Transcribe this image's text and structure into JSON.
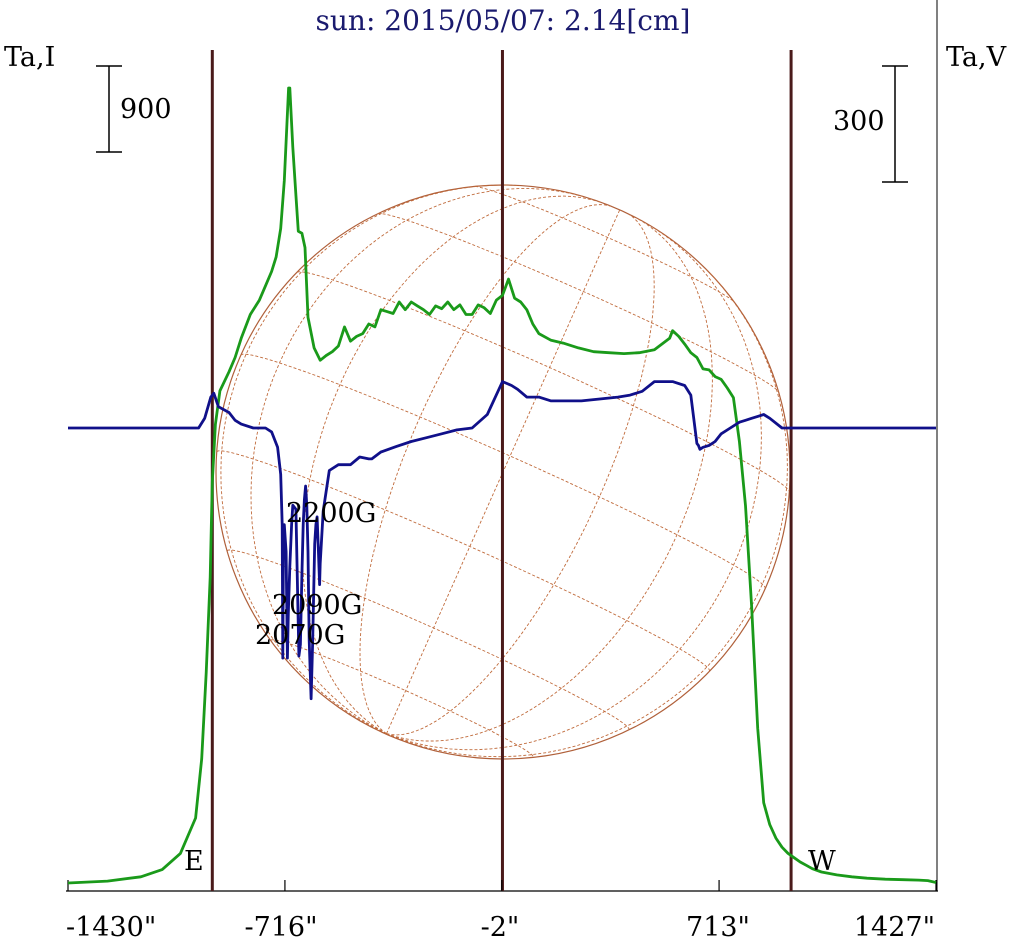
{
  "chart_data": {
    "type": "line",
    "title": "sun: 2015/05/07: 2.14[cm]",
    "left_axis_label": "Ta,I",
    "right_axis_label": "Ta,V",
    "x_ticks": [
      "-1430\"",
      "-716\"",
      "-2\"",
      "713\"",
      "1427\""
    ],
    "x_tick_values": [
      -1430,
      -716,
      -2,
      713,
      1427
    ],
    "xlim": [
      -1430,
      1427
    ],
    "scale_bar_I": "900",
    "scale_bar_V": "300",
    "limb_labels": {
      "east": "E",
      "west": "W"
    },
    "limb_positions": [
      -955,
      0,
      950
    ],
    "field_annotations": [
      "2200G",
      "2090G",
      "2070G"
    ],
    "grid": false,
    "series": [
      {
        "key": "I",
        "color": "#1a9a1a",
        "x": [
          -1430,
          -1300,
          -1190,
          -1120,
          -1060,
          -1010,
          -990,
          -975,
          -962,
          -955,
          -945,
          -930,
          -900,
          -880,
          -860,
          -830,
          -800,
          -780,
          -760,
          -745,
          -730,
          -718,
          -704,
          -700,
          -690,
          -680,
          -672,
          -660,
          -650,
          -640,
          -620,
          -600,
          -580,
          -560,
          -540,
          -520,
          -500,
          -480,
          -460,
          -440,
          -420,
          -400,
          -380,
          -360,
          -340,
          -320,
          -300,
          -280,
          -260,
          -240,
          -220,
          -200,
          -180,
          -160,
          -140,
          -120,
          -100,
          -80,
          -60,
          -40,
          -20,
          0,
          20,
          40,
          60,
          80,
          100,
          120,
          160,
          200,
          250,
          300,
          350,
          400,
          450,
          500,
          550,
          560,
          580,
          600,
          620,
          640,
          660,
          680,
          700,
          720,
          740,
          760,
          780,
          800,
          820,
          840,
          860,
          880,
          900,
          920,
          940,
          960,
          980,
          1000,
          1020,
          1050,
          1100,
          1150,
          1200,
          1260,
          1320,
          1370,
          1400,
          1427
        ],
        "y": [
          0,
          20,
          65,
          140,
          310,
          680,
          1300,
          2200,
          3200,
          4200,
          4800,
          5150,
          5350,
          5500,
          5700,
          5950,
          6100,
          6250,
          6400,
          6550,
          6850,
          7350,
          8320,
          8320,
          7700,
          7200,
          6820,
          6800,
          6650,
          5920,
          5600,
          5470,
          5520,
          5560,
          5620,
          5820,
          5670,
          5720,
          5750,
          5850,
          5820,
          6000,
          5980,
          5960,
          6080,
          6000,
          6080,
          6040,
          6000,
          5950,
          6040,
          6010,
          6080,
          6000,
          6050,
          5950,
          5950,
          6050,
          6020,
          5960,
          6100,
          6150,
          6320,
          6120,
          6080,
          6000,
          5850,
          5750,
          5680,
          5650,
          5600,
          5560,
          5550,
          5540,
          5550,
          5580,
          5700,
          5780,
          5720,
          5640,
          5550,
          5500,
          5380,
          5370,
          5300,
          5270,
          5180,
          5080,
          4620,
          3950,
          2900,
          1620,
          840,
          610,
          470,
          375,
          310,
          265,
          220,
          185,
          150,
          115,
          85,
          65,
          50,
          40,
          35,
          30,
          25,
          5
        ]
      },
      {
        "key": "V",
        "color": "#10108a",
        "x": [
          -1430,
          -1300,
          -1200,
          -1100,
          -1000,
          -980,
          -960,
          -950,
          -935,
          -900,
          -880,
          -860,
          -820,
          -780,
          -760,
          -740,
          -730,
          -725,
          -723,
          -721,
          -718,
          -712,
          -708,
          -705,
          -700,
          -694,
          -690,
          -680,
          -670,
          -665,
          -660,
          -656,
          -652,
          -648,
          -644,
          -640,
          -636,
          -630,
          -625,
          -618,
          -614,
          -610,
          -606,
          -602,
          -600,
          -590,
          -570,
          -540,
          -500,
          -470,
          -440,
          -430,
          -400,
          -350,
          -300,
          -250,
          -200,
          -150,
          -100,
          -50,
          0,
          30,
          50,
          80,
          120,
          160,
          200,
          260,
          320,
          380,
          420,
          460,
          500,
          540,
          560,
          600,
          620,
          640,
          645,
          650,
          660,
          680,
          700,
          720,
          750,
          780,
          800,
          820,
          840,
          860,
          880,
          920,
          960,
          1000,
          1050,
          1100,
          1150,
          1200,
          1250,
          1300,
          1350,
          1427
        ],
        "y": [
          0,
          0,
          0,
          0,
          0,
          25,
          80,
          90,
          55,
          40,
          20,
          10,
          0,
          0,
          -10,
          -50,
          -120,
          -250,
          -595,
          -330,
          -250,
          -320,
          -595,
          -480,
          -360,
          -250,
          -200,
          -210,
          -590,
          -560,
          -380,
          -250,
          -185,
          -150,
          -200,
          -320,
          -550,
          -700,
          -560,
          -300,
          -250,
          -230,
          -310,
          -405,
          -350,
          -215,
          -110,
          -95,
          -95,
          -75,
          -80,
          -80,
          -62,
          -48,
          -35,
          -25,
          -15,
          -5,
          0,
          35,
          120,
          110,
          100,
          80,
          80,
          70,
          70,
          70,
          75,
          80,
          85,
          95,
          120,
          120,
          120,
          110,
          85,
          -40,
          -45,
          -55,
          -50,
          -45,
          -35,
          -15,
          0,
          15,
          20,
          25,
          30,
          35,
          25,
          0,
          0,
          0,
          0,
          0,
          0,
          0,
          0,
          0,
          0,
          0
        ]
      }
    ]
  }
}
